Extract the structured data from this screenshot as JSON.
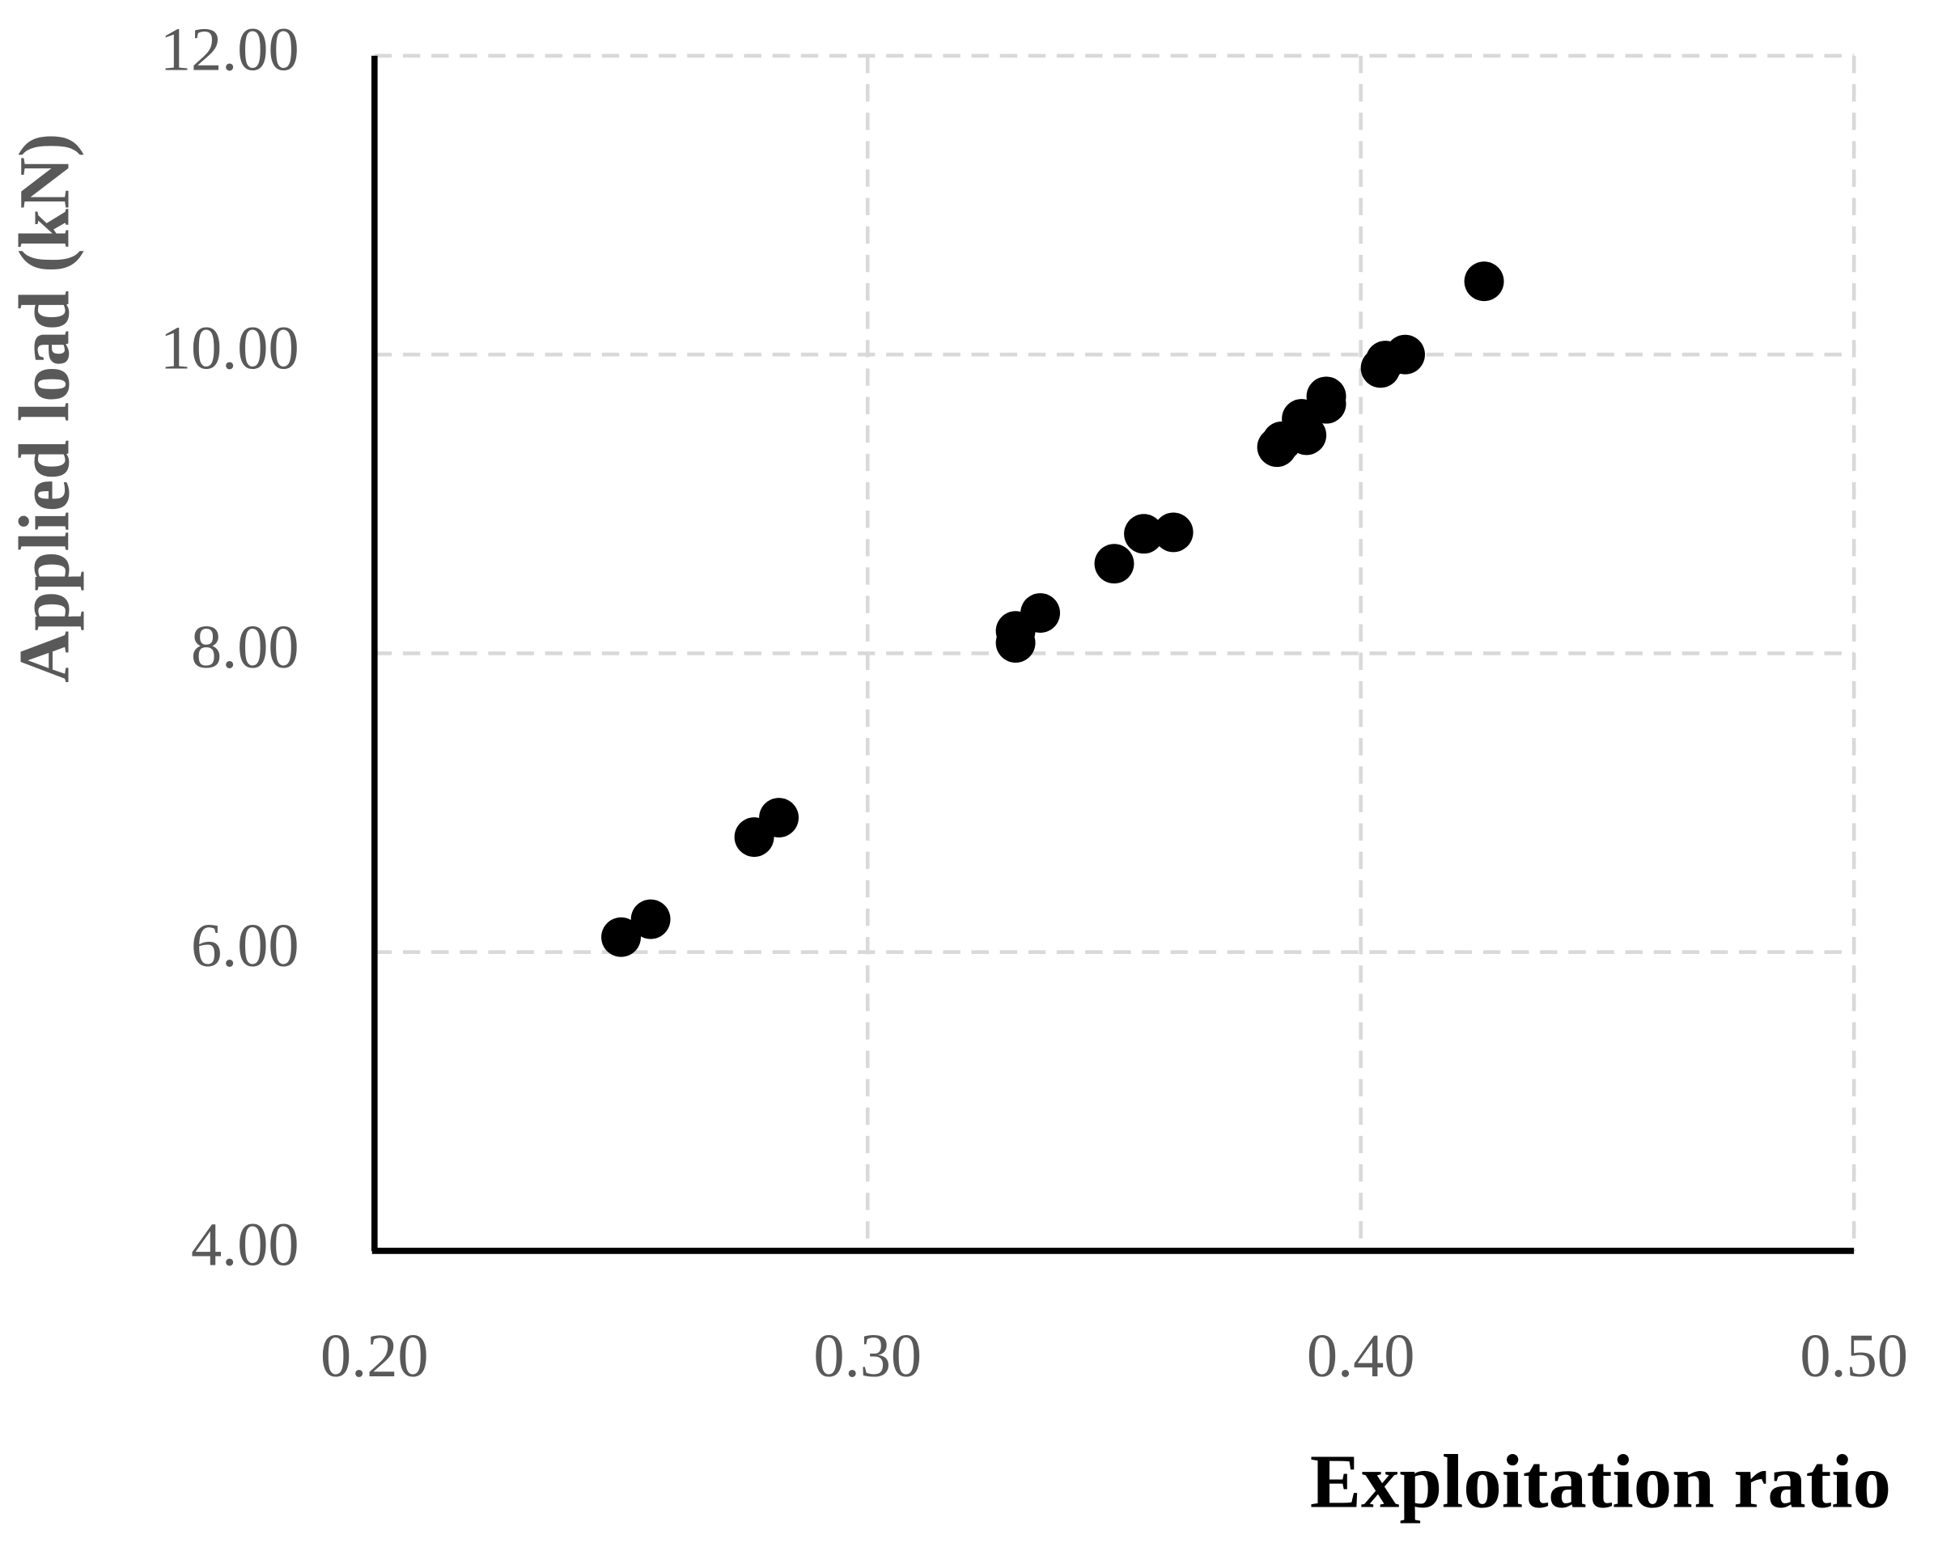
{
  "chart_data": {
    "type": "scatter",
    "x_label": "Exploitation ratio",
    "y_label": "Applied load (kN)",
    "color": "#000000",
    "grid": true,
    "xlim": [
      0.2,
      0.5
    ],
    "ylim": [
      4,
      12
    ],
    "xticks": [
      {
        "value": 0.2,
        "label": "0.20"
      },
      {
        "value": 0.3,
        "label": "0.30"
      },
      {
        "value": 0.4,
        "label": "0.40"
      },
      {
        "value": 0.5,
        "label": "0.50"
      }
    ],
    "yticks": [
      {
        "value": 4,
        "label": "4.00"
      },
      {
        "value": 6,
        "label": "6.00"
      },
      {
        "value": 8,
        "label": "8.00"
      },
      {
        "value": 10,
        "label": "10.00"
      },
      {
        "value": 12,
        "label": "12.00"
      }
    ],
    "x": [
      0.25,
      0.256,
      0.277,
      0.282,
      0.33,
      0.33,
      0.335,
      0.35,
      0.356,
      0.362,
      0.383,
      0.384,
      0.388,
      0.389,
      0.393,
      0.393,
      0.404,
      0.405,
      0.409,
      0.425
    ],
    "values": [
      6.1,
      6.22,
      6.77,
      6.9,
      8.07,
      8.15,
      8.27,
      8.6,
      8.8,
      8.81,
      9.38,
      9.42,
      9.57,
      9.46,
      9.67,
      9.72,
      9.91,
      9.96,
      10.0,
      10.49
    ]
  }
}
